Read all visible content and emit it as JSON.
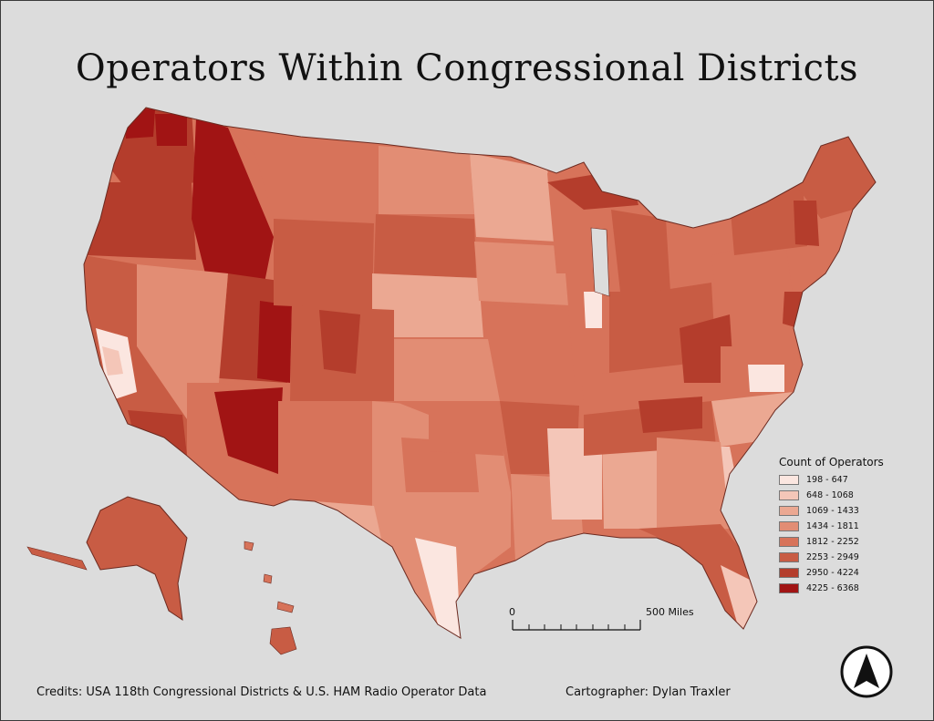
{
  "title": "Operators Within Congressional Districts",
  "legend": {
    "title": "Count of Operators",
    "classes": [
      {
        "label": "198 - 647",
        "color": "#fbe6e0"
      },
      {
        "label": "648 - 1068",
        "color": "#f4c6b8"
      },
      {
        "label": "1069 - 1433",
        "color": "#eba892"
      },
      {
        "label": "1434 - 1811",
        "color": "#e28d74"
      },
      {
        "label": "1812 - 2252",
        "color": "#d7735a"
      },
      {
        "label": "2253 - 2949",
        "color": "#c85c44"
      },
      {
        "label": "2950 - 4224",
        "color": "#b43d2c"
      },
      {
        "label": "4225 - 6368",
        "color": "#a11414"
      }
    ]
  },
  "scale_bar": {
    "start_label": "0",
    "end_label": "500 Miles"
  },
  "credits": "Credits: USA 118th Congressional Districts & U.S. HAM Radio Operator Data",
  "cartographer": "Cartographer: Dylan Traxler",
  "north_arrow": {
    "icon": "north-arrow-icon"
  }
}
